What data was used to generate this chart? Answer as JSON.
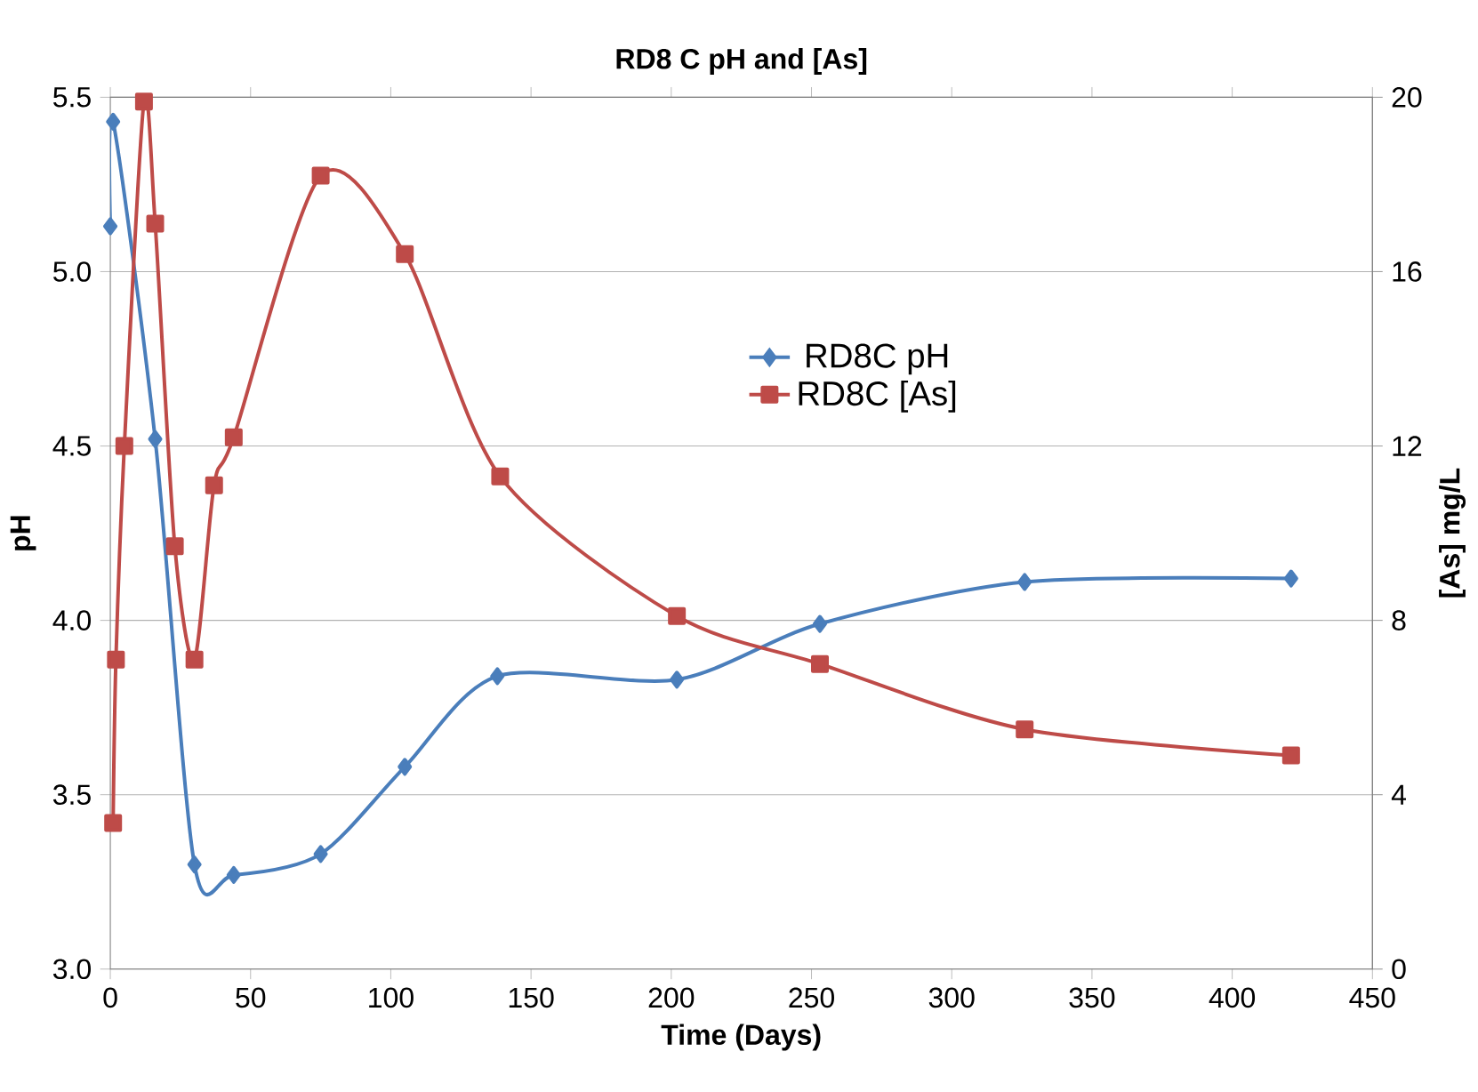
{
  "chart_data": {
    "type": "line",
    "title": "RD8 C pH and [As]",
    "xlabel": "Time (Days)",
    "ylabel": "pH",
    "y2label": "[As] mg/L",
    "xlim": [
      0,
      450
    ],
    "xticks": [
      0,
      50,
      100,
      150,
      200,
      250,
      300,
      350,
      400,
      450
    ],
    "ylim": [
      3.0,
      5.5
    ],
    "yticks": [
      {
        "value": 3.0,
        "label": "3.0"
      },
      {
        "value": 3.5,
        "label": "3.5"
      },
      {
        "value": 4.0,
        "label": "4.0"
      },
      {
        "value": 4.5,
        "label": "4.5"
      },
      {
        "value": 5.0,
        "label": "5.0"
      },
      {
        "value": 5.5,
        "label": "5.5"
      }
    ],
    "y2lim": [
      0,
      20
    ],
    "y2ticks": [
      0,
      4,
      8,
      12,
      16,
      20
    ],
    "grid": "y",
    "legend": "right",
    "series": [
      {
        "name": "RD8C pH",
        "color": "#4a7ebb",
        "marker": "diamond",
        "x": [
          0,
          1,
          16,
          30,
          44,
          75,
          105,
          138,
          202,
          253,
          326,
          421
        ],
        "values": [
          5.13,
          5.43,
          4.52,
          3.3,
          3.27,
          3.33,
          3.58,
          3.84,
          3.83,
          3.99,
          4.11,
          4.12
        ]
      },
      {
        "name": "RD8C [As]",
        "color": "#be4b48",
        "marker": "square",
        "axis": "y2",
        "x": [
          1,
          2,
          5,
          12,
          16,
          23,
          30,
          37,
          44,
          75,
          105,
          139,
          202,
          253,
          326,
          421
        ],
        "values": [
          3.35,
          7.1,
          12.0,
          19.9,
          17.1,
          9.7,
          7.1,
          11.1,
          12.2,
          18.2,
          16.4,
          11.3,
          8.1,
          7.0,
          5.5,
          4.9
        ]
      }
    ]
  }
}
